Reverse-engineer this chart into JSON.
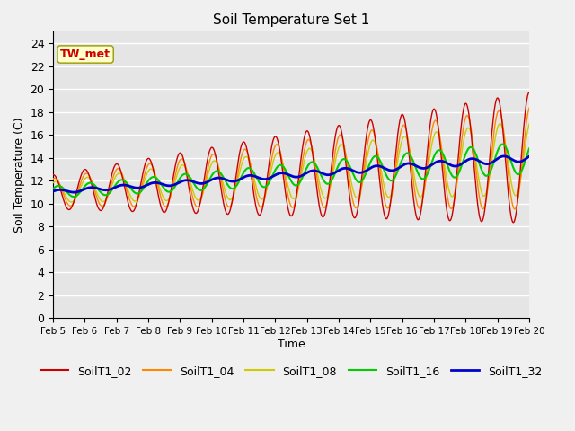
{
  "title": "Soil Temperature Set 1",
  "xlabel": "Time",
  "ylabel": "Soil Temperature (C)",
  "xlim": [
    0,
    15
  ],
  "ylim": [
    0,
    25
  ],
  "yticks": [
    0,
    2,
    4,
    6,
    8,
    10,
    12,
    14,
    16,
    18,
    20,
    22,
    24
  ],
  "xtick_labels": [
    "Feb 5",
    "Feb 6",
    "Feb 7",
    "Feb 8",
    "Feb 9",
    "Feb 10",
    "Feb 11",
    "Feb 12",
    "Feb 13",
    "Feb 14",
    "Feb 15",
    "Feb 16",
    "Feb 17",
    "Feb 18",
    "Feb 19",
    "Feb 20"
  ],
  "colors": {
    "SoilT1_02": "#cc0000",
    "SoilT1_04": "#ff8800",
    "SoilT1_08": "#cccc00",
    "SoilT1_16": "#00cc00",
    "SoilT1_32": "#0000cc"
  },
  "annotation_text": "TW_met",
  "annotation_color": "#cc0000",
  "annotation_bg": "#ffffcc",
  "background_color": "#e5e5e5",
  "fig_bg": "#f0f0f0",
  "trend_base": 11.0,
  "trend_slope": 0.2,
  "amp_02_base": 1.5,
  "amp_02_growth": 0.28,
  "amp_04_base": 1.2,
  "amp_04_growth": 0.22,
  "amp_08_base": 0.9,
  "amp_08_growth": 0.16,
  "amp_16_base": 0.5,
  "amp_16_growth": 0.06,
  "amp_32_base": 0.15,
  "amp_32_growth": 0.01,
  "phase_02": 1.5707963,
  "phase_04": 1.3,
  "phase_08": 1.1,
  "phase_16": 0.6,
  "phase_32": 0.4,
  "lw_02": 1.0,
  "lw_04": 1.0,
  "lw_08": 1.0,
  "lw_16": 1.5,
  "lw_32": 2.0
}
